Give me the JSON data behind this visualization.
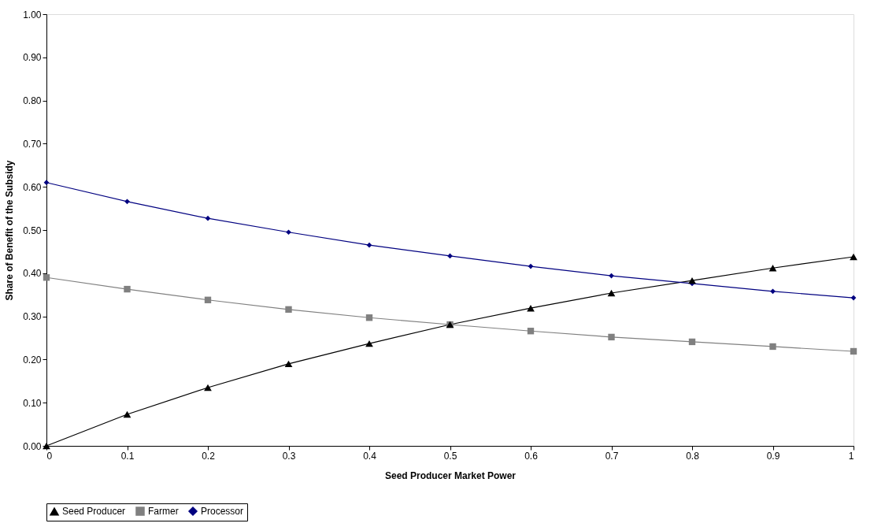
{
  "chart_data": {
    "type": "line",
    "xlabel": "Seed Producer Market Power",
    "ylabel": "Share of Benefit of the Subsidy",
    "x": [
      0,
      0.1,
      0.2,
      0.3,
      0.4,
      0.5,
      0.6,
      0.7,
      0.8,
      0.9,
      1
    ],
    "xlim": [
      0,
      1
    ],
    "xticks": [
      0,
      0.1,
      0.2,
      0.3,
      0.4,
      0.5,
      0.6,
      0.7,
      0.8,
      0.9,
      1
    ],
    "ylim": [
      0,
      1
    ],
    "yticks": [
      {
        "value": 0,
        "label": "0.00"
      },
      {
        "value": 0.1,
        "label": "0.10"
      },
      {
        "value": 0.2,
        "label": "0.20"
      },
      {
        "value": 0.3,
        "label": "0.30"
      },
      {
        "value": 0.4,
        "label": "0.40"
      },
      {
        "value": 0.5,
        "label": "0.50"
      },
      {
        "value": 0.6,
        "label": "0.60"
      },
      {
        "value": 0.7,
        "label": "0.70"
      },
      {
        "value": 0.8,
        "label": "0.80"
      },
      {
        "value": 0.9,
        "label": "0.90"
      },
      {
        "value": 1,
        "label": "1.00"
      }
    ],
    "grid": false,
    "legend": "bottom",
    "series": [
      {
        "name": "Seed Producer",
        "color": "#000000",
        "marker": "triangle",
        "values": [
          0,
          0.073,
          0.135,
          0.19,
          0.237,
          0.281,
          0.319,
          0.354,
          0.383,
          0.412,
          0.438
        ]
      },
      {
        "name": "Farmer",
        "color": "#808080",
        "marker": "square",
        "values": [
          0.39,
          0.363,
          0.338,
          0.316,
          0.297,
          0.281,
          0.266,
          0.252,
          0.241,
          0.23,
          0.219
        ]
      },
      {
        "name": "Processor",
        "color": "#000080",
        "marker": "diamond",
        "values": [
          0.61,
          0.566,
          0.527,
          0.495,
          0.465,
          0.44,
          0.416,
          0.394,
          0.376,
          0.358,
          0.343
        ]
      }
    ]
  }
}
